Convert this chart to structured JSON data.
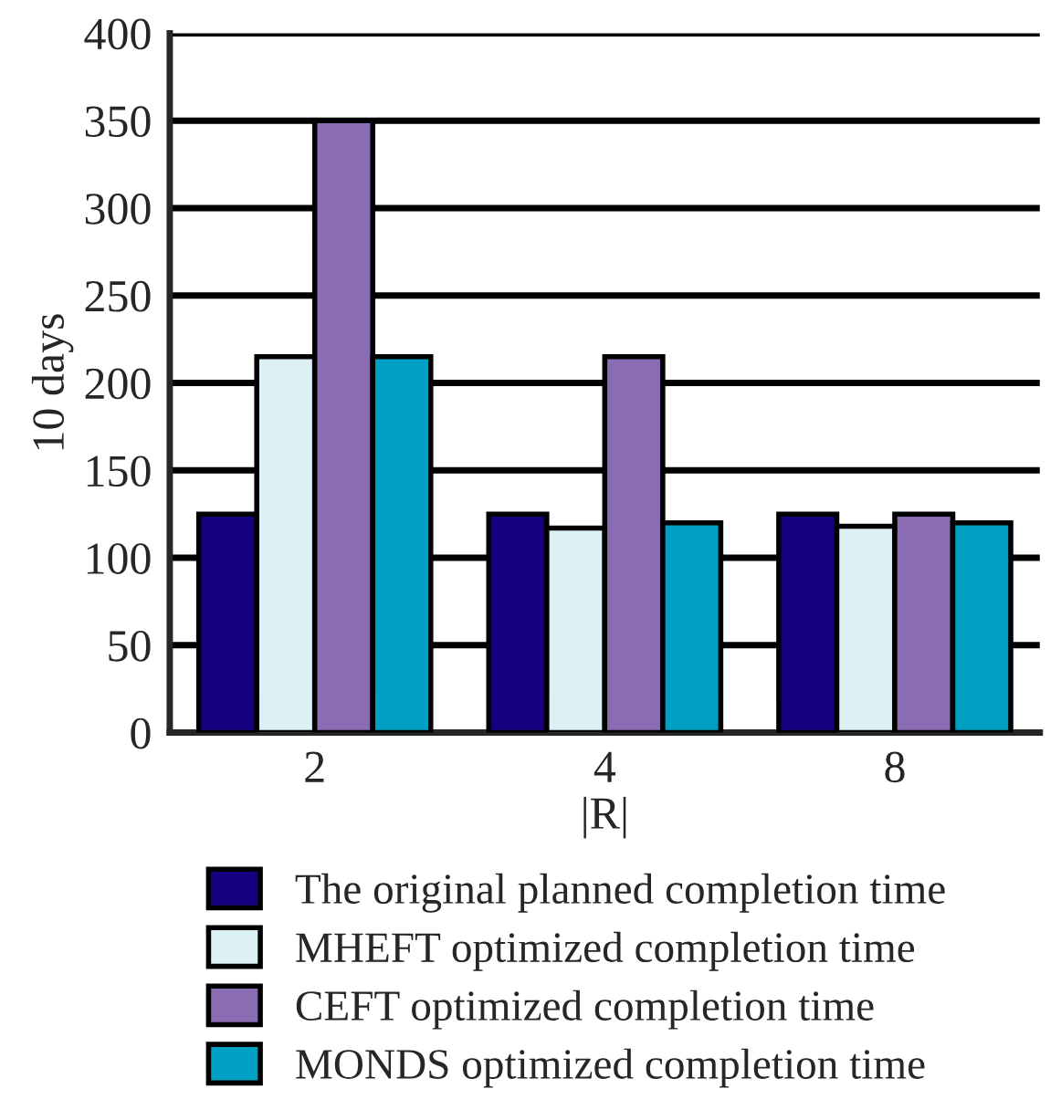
{
  "chart_data": {
    "type": "bar",
    "xlabel": "|R|",
    "ylabel": "10 days",
    "categories": [
      "2",
      "4",
      "8"
    ],
    "series": [
      {
        "name": "The original planned completion time",
        "color": "#170080",
        "values": [
          125,
          125,
          125
        ]
      },
      {
        "name": "MHEFT optimized completion time",
        "color": "#dcf0f4",
        "values": [
          215,
          117,
          118
        ]
      },
      {
        "name": "CEFT optimized completion time",
        "color": "#8a6cb2",
        "values": [
          350,
          215,
          125
        ]
      },
      {
        "name": "MONDS optimized completion time",
        "color": "#00a0c4",
        "values": [
          215,
          120,
          120
        ]
      }
    ],
    "ylim": [
      0,
      400
    ],
    "yticks": [
      0,
      50,
      100,
      150,
      200,
      250,
      300,
      350,
      400
    ],
    "grid": "y",
    "legend": "bottom"
  }
}
